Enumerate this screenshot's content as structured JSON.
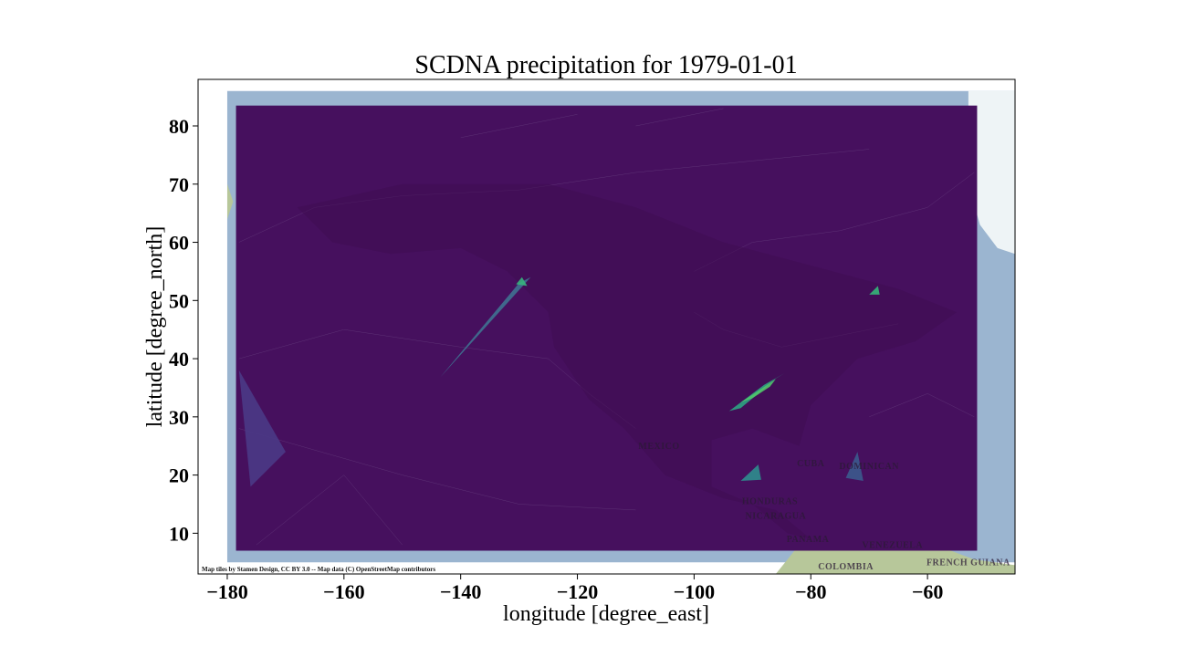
{
  "chart_data": {
    "type": "heatmap",
    "title": "SCDNA precipitation for 1979-01-01",
    "xlabel": "longitude [degree_east]",
    "ylabel": "latitude [degree_north]",
    "xlim": [
      -185,
      -45
    ],
    "ylim": [
      3,
      88
    ],
    "xticks": [
      -180,
      -160,
      -140,
      -120,
      -100,
      -80,
      -60
    ],
    "yticks": [
      10,
      20,
      30,
      40,
      50,
      60,
      70,
      80
    ],
    "xtick_labels": [
      "−180",
      "−160",
      "−140",
      "−120",
      "−100",
      "−80",
      "−60"
    ],
    "ytick_labels": [
      "10",
      "20",
      "30",
      "40",
      "50",
      "60",
      "70",
      "80"
    ],
    "grid": false,
    "basemap": {
      "attribution": "Map tiles by Stamen Design, CC BY 3.0 -- Map data (C) OpenStreetMap contributors",
      "tile_extent": {
        "lon": [
          -180,
          -45
        ],
        "lat": [
          5,
          86
        ]
      },
      "ocean_color": "#9bb5d0",
      "land_color": "#b7c79a",
      "ice_color": "#eef4f6",
      "place_labels": [
        {
          "name": "MEXICO",
          "lon": -106,
          "lat": 24.5
        },
        {
          "name": "CUBA",
          "lon": -80,
          "lat": 21.5
        },
        {
          "name": "DOMINICAN",
          "lon": -70,
          "lat": 21
        },
        {
          "name": "HONDURAS",
          "lon": -87,
          "lat": 15
        },
        {
          "name": "NICARAGUA",
          "lon": -86,
          "lat": 12.5
        },
        {
          "name": "PANAMA",
          "lon": -80.5,
          "lat": 8.5
        },
        {
          "name": "VENEZUELA",
          "lon": -66,
          "lat": 7.5
        },
        {
          "name": "COLOMBIA",
          "lon": -74,
          "lat": 3.8
        },
        {
          "name": "FRENCH GUIANA",
          "lon": -53,
          "lat": 4.5
        }
      ]
    },
    "data_extent": {
      "lon": [
        -178.5,
        -51.5
      ],
      "lat": [
        7,
        83.5
      ]
    },
    "colormap": [
      "#440154",
      "#3b528b",
      "#21918c",
      "#5ec962",
      "#fde725"
    ],
    "background_value_color": "#46105e",
    "highlight_cells": [
      {
        "region": "northeast-gulf-band",
        "polygon": [
          [
            -94,
            31
          ],
          [
            -88,
            35.5
          ],
          [
            -84.5,
            37.5
          ],
          [
            -86,
            36.6
          ],
          [
            -89,
            34
          ],
          [
            -92,
            31.5
          ]
        ],
        "color": "#2ea383"
      },
      {
        "region": "northeast-gulf-core",
        "polygon": [
          [
            -92,
            32.5
          ],
          [
            -88.5,
            34.8
          ],
          [
            -86,
            36.5
          ],
          [
            -87,
            35.2
          ],
          [
            -90,
            33.2
          ]
        ],
        "color": "#52c56a"
      },
      {
        "region": "pacific-northwest-wedge",
        "polygon": [
          [
            -143.5,
            36.8
          ],
          [
            -128,
            54
          ],
          [
            -130,
            53
          ]
        ],
        "color": "#3f7291"
      },
      {
        "region": "alaska-panhandle-spot",
        "polygon": [
          [
            -130.5,
            52.8
          ],
          [
            -129.5,
            54
          ],
          [
            -128.6,
            52.5
          ]
        ],
        "color": "#37b47d"
      },
      {
        "region": "newfoundland-spot",
        "polygon": [
          [
            -70,
            51
          ],
          [
            -68.5,
            52.5
          ],
          [
            -68.2,
            51
          ]
        ],
        "color": "#35b779"
      },
      {
        "region": "gulf-of-honduras-spot",
        "polygon": [
          [
            -92,
            19
          ],
          [
            -89,
            21.8
          ],
          [
            -88.5,
            19.2
          ]
        ],
        "color": "#2d8e8e"
      },
      {
        "region": "caribbean-wedge",
        "polygon": [
          [
            -74,
            19.5
          ],
          [
            -72,
            24
          ],
          [
            -71,
            19
          ]
        ],
        "color": "#3b5a8d"
      },
      {
        "region": "west-pacific-wedge",
        "polygon": [
          [
            -178,
            38
          ],
          [
            -170,
            24
          ],
          [
            -176,
            18
          ]
        ],
        "color": "#4a3a86"
      }
    ]
  }
}
